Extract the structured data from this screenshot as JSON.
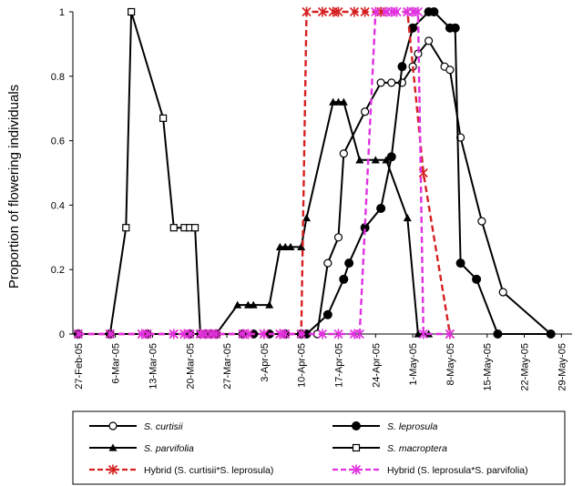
{
  "chart_data": {
    "type": "line",
    "ylabel": "Proportion of flowering individuals",
    "xlabel": "",
    "ylim": [
      0,
      1
    ],
    "y_ticks": [
      "0",
      "0.2",
      "0.4",
      "0.6",
      "0.8",
      "1"
    ],
    "x_tick_labels": [
      "27-Feb-05",
      "6-Mar-05",
      "13-Mar-05",
      "20-Mar-05",
      "27-Mar-05",
      "3-Apr-05",
      "10-Apr-05",
      "17-Apr-05",
      "24-Apr-05",
      "1-May-05",
      "8-May-05",
      "15-May-05",
      "22-May-05",
      "29-May-05"
    ],
    "x_range": [
      "2005-02-26",
      "2005-05-31"
    ],
    "grid": false,
    "legend_position": "bottom",
    "series": [
      {
        "name": "S. curtisii",
        "color": "#000000",
        "dash": "solid",
        "marker": "circle-open",
        "points": [
          [
            "2005-02-27",
            0
          ],
          [
            "2005-03-05",
            0
          ],
          [
            "2005-03-12",
            0
          ],
          [
            "2005-03-20",
            0
          ],
          [
            "2005-03-23",
            0
          ],
          [
            "2005-03-24",
            0
          ],
          [
            "2005-03-25",
            0
          ],
          [
            "2005-03-30",
            0
          ],
          [
            "2005-04-01",
            0
          ],
          [
            "2005-04-04",
            0
          ],
          [
            "2005-04-07",
            0
          ],
          [
            "2005-04-10",
            0
          ],
          [
            "2005-04-11",
            0
          ],
          [
            "2005-04-13",
            0
          ],
          [
            "2005-04-15",
            0.22
          ],
          [
            "2005-04-17",
            0.3
          ],
          [
            "2005-04-18",
            0.56
          ],
          [
            "2005-04-22",
            0.69
          ],
          [
            "2005-04-25",
            0.78
          ],
          [
            "2005-04-27",
            0.78
          ],
          [
            "2005-04-29",
            0.78
          ],
          [
            "2005-05-01",
            0.83
          ],
          [
            "2005-05-02",
            0.87
          ],
          [
            "2005-05-04",
            0.91
          ],
          [
            "2005-05-07",
            0.83
          ],
          [
            "2005-05-08",
            0.82
          ],
          [
            "2005-05-10",
            0.61
          ],
          [
            "2005-05-14",
            0.35
          ],
          [
            "2005-05-18",
            0.13
          ],
          [
            "2005-05-27",
            0
          ]
        ]
      },
      {
        "name": "S. leprosula",
        "color": "#000000",
        "dash": "solid",
        "marker": "circle-filled",
        "points": [
          [
            "2005-02-27",
            0
          ],
          [
            "2005-03-05",
            0
          ],
          [
            "2005-03-12",
            0
          ],
          [
            "2005-03-20",
            0
          ],
          [
            "2005-03-23",
            0
          ],
          [
            "2005-03-24",
            0
          ],
          [
            "2005-03-25",
            0
          ],
          [
            "2005-03-30",
            0
          ],
          [
            "2005-04-01",
            0
          ],
          [
            "2005-04-04",
            0
          ],
          [
            "2005-04-07",
            0
          ],
          [
            "2005-04-10",
            0
          ],
          [
            "2005-04-11",
            0
          ],
          [
            "2005-04-15",
            0.06
          ],
          [
            "2005-04-18",
            0.17
          ],
          [
            "2005-04-19",
            0.22
          ],
          [
            "2005-04-22",
            0.33
          ],
          [
            "2005-04-25",
            0.39
          ],
          [
            "2005-04-27",
            0.55
          ],
          [
            "2005-04-29",
            0.83
          ],
          [
            "2005-05-01",
            0.95
          ],
          [
            "2005-05-04",
            1
          ],
          [
            "2005-05-05",
            1
          ],
          [
            "2005-05-08",
            0.95
          ],
          [
            "2005-05-09",
            0.95
          ],
          [
            "2005-05-10",
            0.22
          ],
          [
            "2005-05-13",
            0.17
          ],
          [
            "2005-05-17",
            0
          ],
          [
            "2005-05-27",
            0
          ]
        ]
      },
      {
        "name": "S. parvifolia",
        "color": "#000000",
        "dash": "solid",
        "marker": "triangle-filled",
        "points": [
          [
            "2005-02-27",
            0
          ],
          [
            "2005-03-05",
            0
          ],
          [
            "2005-03-12",
            0
          ],
          [
            "2005-03-20",
            0
          ],
          [
            "2005-03-23",
            0
          ],
          [
            "2005-03-24",
            0
          ],
          [
            "2005-03-25",
            0
          ],
          [
            "2005-03-29",
            0.09
          ],
          [
            "2005-03-31",
            0.09
          ],
          [
            "2005-04-01",
            0.09
          ],
          [
            "2005-04-04",
            0.09
          ],
          [
            "2005-04-06",
            0.27
          ],
          [
            "2005-04-07",
            0.27
          ],
          [
            "2005-04-08",
            0.27
          ],
          [
            "2005-04-10",
            0.27
          ],
          [
            "2005-04-11",
            0.36
          ],
          [
            "2005-04-16",
            0.72
          ],
          [
            "2005-04-17",
            0.72
          ],
          [
            "2005-04-18",
            0.72
          ],
          [
            "2005-04-21",
            0.54
          ],
          [
            "2005-04-24",
            0.54
          ],
          [
            "2005-04-26",
            0.54
          ],
          [
            "2005-04-30",
            0.36
          ],
          [
            "2005-05-02",
            0
          ],
          [
            "2005-05-04",
            0
          ]
        ]
      },
      {
        "name": "S. macroptera",
        "color": "#000000",
        "dash": "solid",
        "marker": "square-open",
        "points": [
          [
            "2005-02-27",
            0
          ],
          [
            "2005-03-05",
            0
          ],
          [
            "2005-03-08",
            0.33
          ],
          [
            "2005-03-09",
            1
          ],
          [
            "2005-03-15",
            0.67
          ],
          [
            "2005-03-17",
            0.33
          ],
          [
            "2005-03-19",
            0.33
          ],
          [
            "2005-03-20",
            0.33
          ],
          [
            "2005-03-21",
            0.33
          ],
          [
            "2005-03-22",
            0
          ],
          [
            "2005-03-23",
            0
          ],
          [
            "2005-03-24",
            0
          ],
          [
            "2005-03-25",
            0
          ]
        ]
      },
      {
        "name": "Hybrid (S. curtisii*S. leprosula)",
        "color": "#d62020",
        "dash": "dashed",
        "marker": "star",
        "points": [
          [
            "2005-02-27",
            0
          ],
          [
            "2005-03-05",
            0
          ],
          [
            "2005-03-11",
            0
          ],
          [
            "2005-03-12",
            0
          ],
          [
            "2005-03-17",
            0
          ],
          [
            "2005-03-19",
            0
          ],
          [
            "2005-03-20",
            0
          ],
          [
            "2005-03-22",
            0
          ],
          [
            "2005-03-23",
            0
          ],
          [
            "2005-03-24",
            0
          ],
          [
            "2005-03-25",
            0
          ],
          [
            "2005-03-30",
            0
          ],
          [
            "2005-03-31",
            0
          ],
          [
            "2005-04-03",
            0
          ],
          [
            "2005-04-06",
            0
          ],
          [
            "2005-04-07",
            0
          ],
          [
            "2005-04-10",
            0
          ],
          [
            "2005-04-11",
            1
          ],
          [
            "2005-04-14",
            1
          ],
          [
            "2005-04-16",
            1
          ],
          [
            "2005-04-17",
            1
          ],
          [
            "2005-04-20",
            1
          ],
          [
            "2005-04-22",
            1
          ],
          [
            "2005-04-25",
            1
          ],
          [
            "2005-04-30",
            1
          ],
          [
            "2005-05-03",
            0.5
          ],
          [
            "2005-05-08",
            0
          ]
        ]
      },
      {
        "name": "Hybrid (S. leprosula*S. parvifolia)",
        "color": "#e030e0",
        "dash": "dashed",
        "marker": "star",
        "points": [
          [
            "2005-02-27",
            0
          ],
          [
            "2005-03-05",
            0
          ],
          [
            "2005-03-11",
            0
          ],
          [
            "2005-03-12",
            0
          ],
          [
            "2005-03-17",
            0
          ],
          [
            "2005-03-19",
            0
          ],
          [
            "2005-03-20",
            0
          ],
          [
            "2005-03-22",
            0
          ],
          [
            "2005-03-23",
            0
          ],
          [
            "2005-03-24",
            0
          ],
          [
            "2005-03-25",
            0
          ],
          [
            "2005-03-30",
            0
          ],
          [
            "2005-03-31",
            0
          ],
          [
            "2005-04-03",
            0
          ],
          [
            "2005-04-06",
            0
          ],
          [
            "2005-04-07",
            0
          ],
          [
            "2005-04-10",
            0
          ],
          [
            "2005-04-14",
            0
          ],
          [
            "2005-04-17",
            0
          ],
          [
            "2005-04-20",
            0
          ],
          [
            "2005-04-21",
            0
          ],
          [
            "2005-04-24",
            1
          ],
          [
            "2005-04-26",
            1
          ],
          [
            "2005-04-27",
            1
          ],
          [
            "2005-04-28",
            1
          ],
          [
            "2005-04-30",
            1
          ],
          [
            "2005-05-01",
            1
          ],
          [
            "2005-05-02",
            1
          ],
          [
            "2005-05-03",
            0
          ],
          [
            "2005-05-08",
            0
          ]
        ]
      }
    ]
  }
}
